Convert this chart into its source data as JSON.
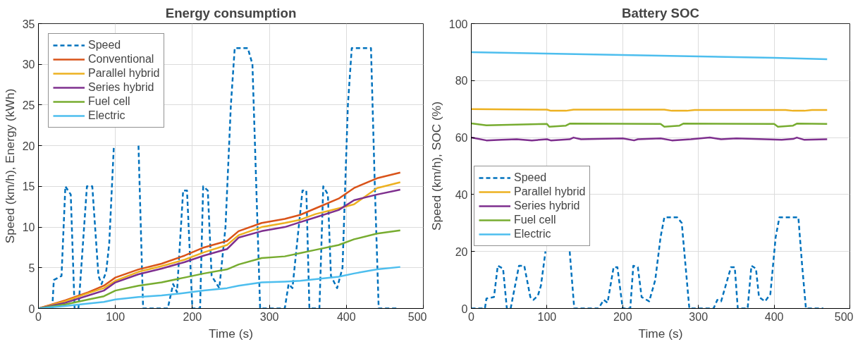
{
  "chart_data": [
    {
      "type": "line",
      "title": "Energy consumption",
      "xlabel": "Time (s)",
      "ylabel": "Speed (km/h), Energy (kWh)",
      "xlim": [
        0,
        500
      ],
      "xticks": [
        0,
        100,
        200,
        300,
        400,
        500
      ],
      "ylim": [
        0,
        35
      ],
      "yticks": [
        0,
        5,
        10,
        15,
        20,
        25,
        30,
        35
      ],
      "grid": true,
      "legend": "top left",
      "series": [
        {
          "name": "Speed",
          "color": "#0072bd",
          "line_style": "dashed",
          "x": [
            0,
            18,
            20,
            30,
            35,
            42,
            47,
            52,
            63,
            70,
            78,
            82,
            88,
            92,
            98,
            115,
            130,
            136,
            155,
            168,
            175,
            180,
            188,
            193,
            200,
            210,
            214,
            220,
            225,
            235,
            243,
            250,
            255,
            272,
            278,
            283,
            288,
            300,
            320,
            325,
            330,
            343,
            348,
            352,
            365,
            370,
            376,
            380,
            388,
            395,
            402,
            407,
            432,
            437,
            442,
            465
          ],
          "values": [
            0,
            0,
            3.5,
            4,
            15,
            14,
            0,
            0,
            15,
            15,
            4,
            3,
            4.5,
            8,
            20,
            null,
            20,
            0,
            0,
            0,
            3,
            2,
            14.5,
            14.5,
            0,
            0,
            15,
            14.5,
            4,
            2.5,
            10,
            25,
            32,
            32,
            30,
            15,
            0,
            0,
            0,
            3,
            2.5,
            14.5,
            14.5,
            0,
            0,
            15,
            14,
            4,
            2.5,
            5,
            25,
            32,
            32,
            15,
            0,
            0
          ]
        },
        {
          "name": "Conventional",
          "color": "#d95319",
          "x": [
            0,
            35,
            65,
            85,
            100,
            130,
            160,
            190,
            215,
            245,
            260,
            290,
            320,
            340,
            360,
            390,
            410,
            440,
            470
          ],
          "values": [
            0,
            1,
            2,
            2.8,
            3.8,
            4.8,
            5.5,
            6.5,
            7.5,
            8.3,
            9.5,
            10.5,
            11,
            11.5,
            12.3,
            13.5,
            14.8,
            16,
            16.7
          ]
        },
        {
          "name": "Parallel hybrid",
          "color": "#edb120",
          "x": [
            0,
            35,
            65,
            85,
            100,
            130,
            160,
            190,
            215,
            245,
            260,
            290,
            320,
            340,
            360,
            390,
            410,
            440,
            470
          ],
          "values": [
            0,
            0.9,
            1.9,
            2.5,
            3.4,
            4.5,
            5.2,
            6,
            6.9,
            7.8,
            9,
            10,
            10.5,
            10.9,
            11.6,
            12.3,
            12.8,
            14.8,
            15.5
          ]
        },
        {
          "name": "Series hybrid",
          "color": "#7e2f8e",
          "x": [
            0,
            35,
            65,
            85,
            100,
            130,
            160,
            190,
            215,
            245,
            260,
            290,
            320,
            340,
            360,
            390,
            410,
            440,
            470
          ],
          "values": [
            0,
            0.7,
            1.6,
            2.2,
            3.2,
            4.2,
            4.9,
            5.7,
            6.5,
            7.3,
            8.7,
            9.5,
            10,
            10.6,
            11.2,
            12.1,
            13.3,
            14,
            14.6
          ]
        },
        {
          "name": "Fuel cell",
          "color": "#77ac30",
          "x": [
            0,
            35,
            65,
            85,
            100,
            130,
            160,
            190,
            215,
            245,
            260,
            290,
            320,
            340,
            360,
            390,
            410,
            440,
            470
          ],
          "values": [
            0,
            0.5,
            1.1,
            1.5,
            2.2,
            2.8,
            3.2,
            3.8,
            4.3,
            4.8,
            5.4,
            6.2,
            6.4,
            6.8,
            7.2,
            7.8,
            8.5,
            9.2,
            9.6
          ]
        },
        {
          "name": "Electric",
          "color": "#4dbeee",
          "x": [
            0,
            35,
            65,
            85,
            100,
            130,
            160,
            190,
            215,
            245,
            260,
            290,
            320,
            340,
            360,
            390,
            410,
            440,
            470
          ],
          "values": [
            0,
            0.3,
            0.6,
            0.8,
            1.1,
            1.4,
            1.6,
            1.9,
            2.2,
            2.5,
            2.8,
            3.2,
            3.3,
            3.4,
            3.6,
            3.9,
            4.3,
            4.8,
            5.1
          ]
        }
      ]
    },
    {
      "type": "line",
      "title": "Battery SOC",
      "xlabel": "Time (s)",
      "ylabel": "Speed (km/h), SOC (%)",
      "xlim": [
        0,
        500
      ],
      "xticks": [
        0,
        100,
        200,
        300,
        400,
        500
      ],
      "ylim": [
        0,
        100
      ],
      "yticks": [
        0,
        20,
        40,
        60,
        80,
        100
      ],
      "grid": true,
      "legend": "left",
      "series": [
        {
          "name": "Speed",
          "color": "#0072bd",
          "line_style": "dashed",
          "x": [
            0,
            18,
            20,
            30,
            35,
            42,
            47,
            52,
            63,
            70,
            78,
            82,
            88,
            92,
            98,
            115,
            130,
            136,
            155,
            168,
            175,
            180,
            188,
            193,
            200,
            210,
            214,
            220,
            225,
            235,
            243,
            250,
            255,
            272,
            278,
            283,
            288,
            300,
            320,
            325,
            330,
            343,
            348,
            352,
            365,
            370,
            376,
            380,
            388,
            395,
            402,
            407,
            432,
            437,
            442,
            465
          ],
          "values": [
            0,
            0,
            3.5,
            4,
            15,
            14,
            0,
            0,
            15,
            15,
            4,
            3,
            4.5,
            8,
            20,
            null,
            20,
            0,
            0,
            0,
            3,
            2,
            14.5,
            14.5,
            0,
            0,
            15,
            14.5,
            4,
            2.5,
            10,
            25,
            32,
            32,
            30,
            15,
            0,
            0,
            0,
            3,
            2.5,
            14.5,
            14.5,
            0,
            0,
            15,
            14,
            4,
            2.5,
            5,
            25,
            32,
            32,
            15,
            0,
            0
          ]
        },
        {
          "name": "Parallel hybrid",
          "color": "#edb120",
          "x": [
            0,
            100,
            105,
            125,
            135,
            255,
            265,
            285,
            295,
            415,
            425,
            440,
            450,
            470
          ],
          "values": [
            70,
            69.8,
            69.4,
            69.4,
            69.8,
            69.8,
            69.4,
            69.4,
            69.7,
            69.7,
            69.4,
            69.4,
            69.7,
            69.7
          ]
        },
        {
          "name": "Series hybrid",
          "color": "#7e2f8e",
          "x": [
            0,
            20,
            40,
            60,
            80,
            100,
            105,
            130,
            135,
            145,
            200,
            215,
            220,
            250,
            265,
            290,
            315,
            330,
            350,
            410,
            425,
            430,
            440,
            470
          ],
          "values": [
            60,
            59,
            59.2,
            59.4,
            59,
            59.4,
            59,
            59.4,
            60,
            59.4,
            59.7,
            59,
            59.4,
            59.7,
            59,
            59.4,
            60,
            59.4,
            59.7,
            59.2,
            59.5,
            60,
            59.2,
            59.4
          ]
        },
        {
          "name": "Fuel cell",
          "color": "#77ac30",
          "x": [
            0,
            20,
            100,
            103,
            125,
            130,
            250,
            255,
            275,
            280,
            400,
            405,
            425,
            430,
            470
          ],
          "values": [
            65,
            64.3,
            64.8,
            63.8,
            64.2,
            64.9,
            64.8,
            63.8,
            64.2,
            64.9,
            64.8,
            63.8,
            64.2,
            64.9,
            64.8
          ]
        },
        {
          "name": "Electric",
          "color": "#4dbeee",
          "x": [
            0,
            100,
            200,
            300,
            400,
            470
          ],
          "values": [
            90,
            89.5,
            89,
            88.5,
            88,
            87.5
          ]
        }
      ]
    }
  ]
}
